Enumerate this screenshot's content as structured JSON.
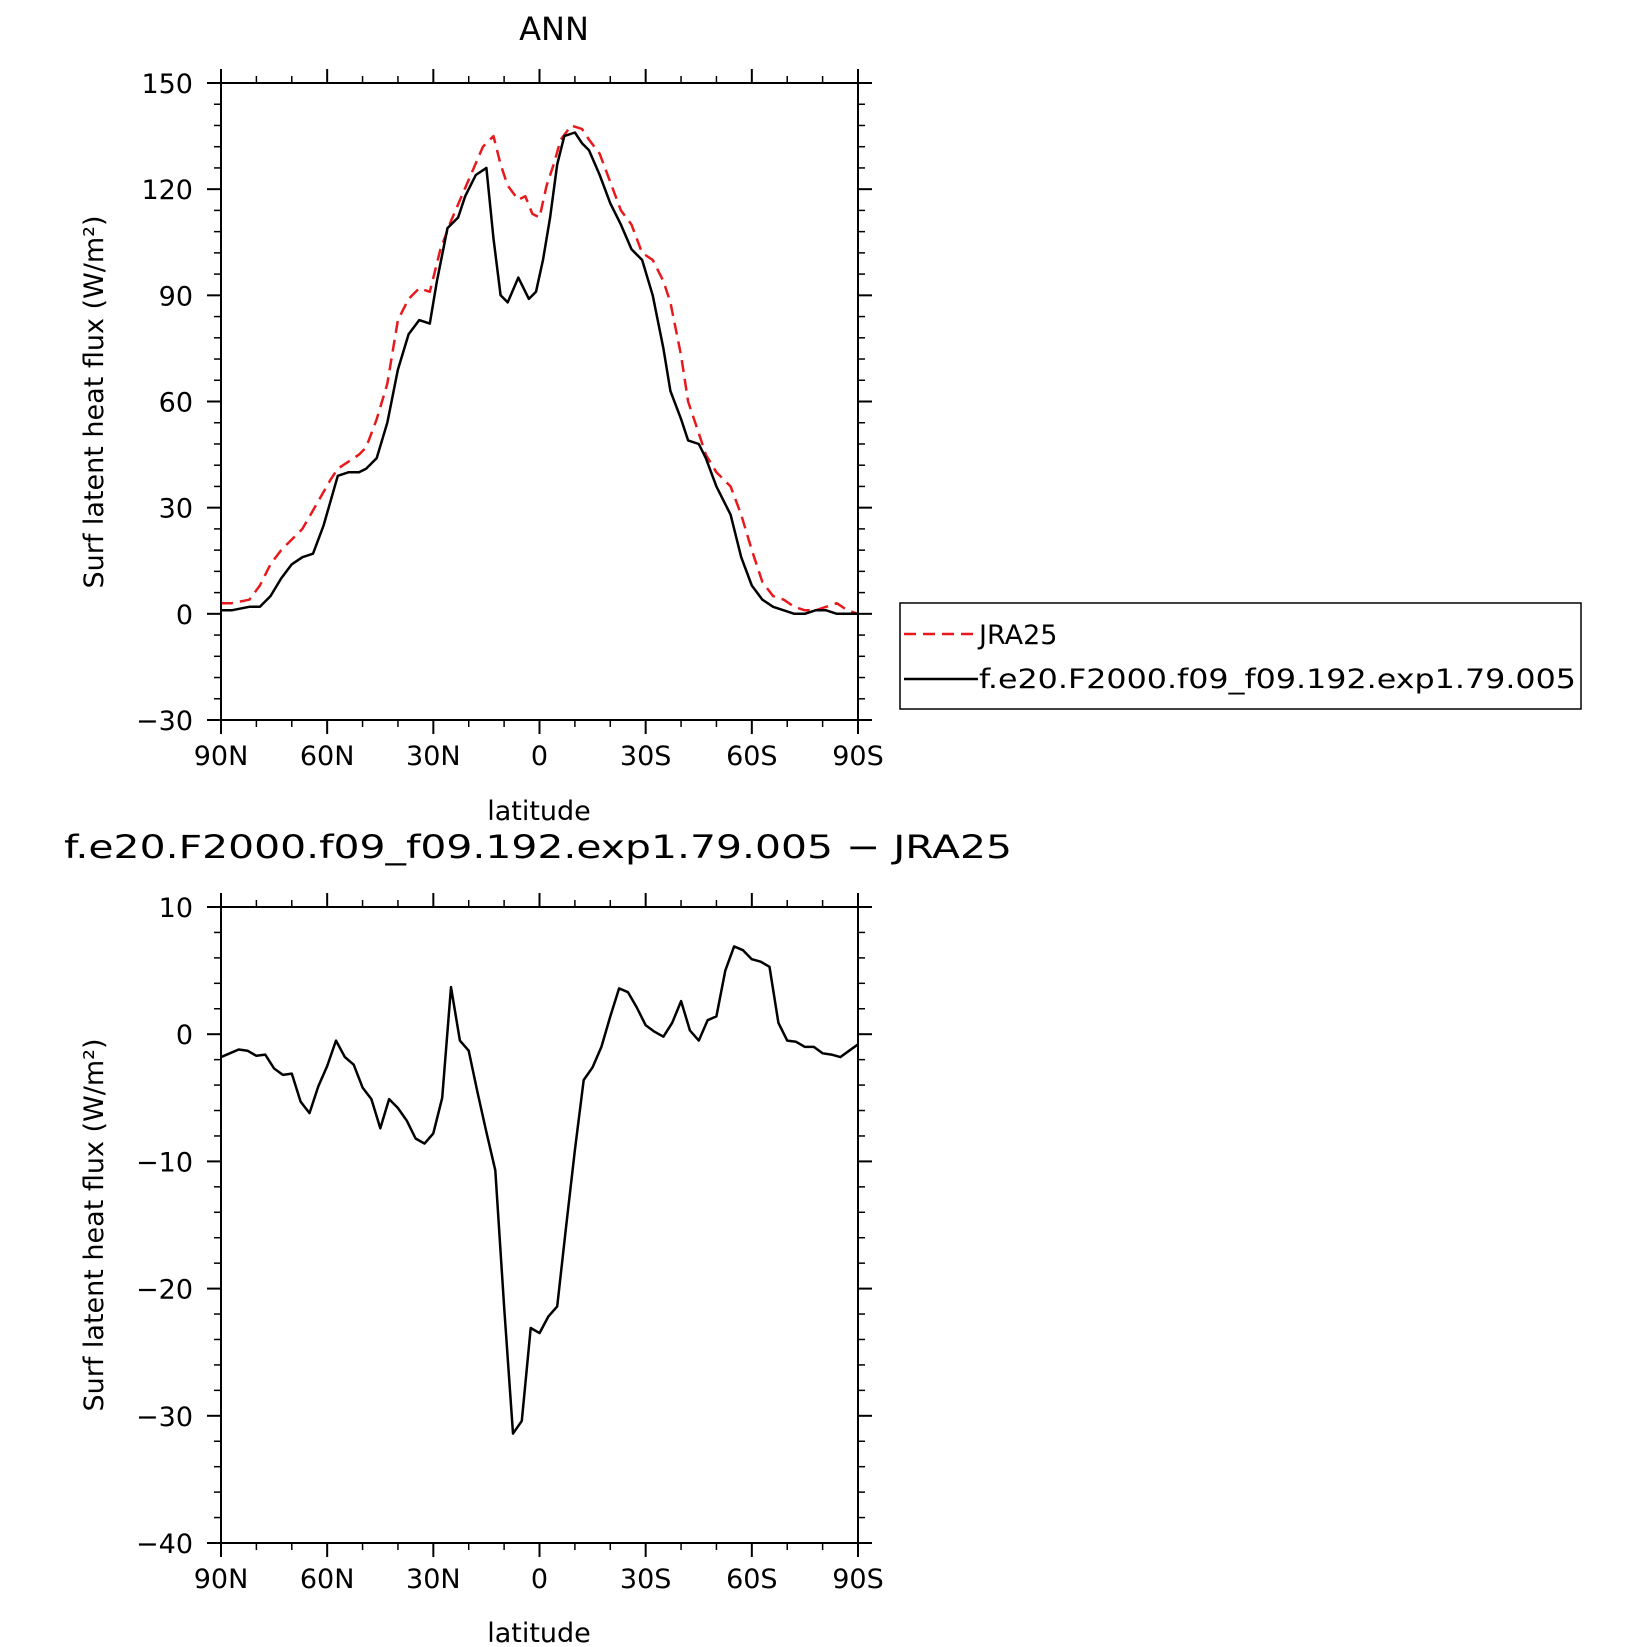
{
  "chart_data": [
    {
      "type": "line",
      "title": "ANN",
      "xlabel": "latitude",
      "ylabel": "Surf latent heat flux (W/m²)",
      "xlim": [
        90,
        -90
      ],
      "ylim": [
        -30,
        150
      ],
      "x_ticks": [
        90,
        60,
        30,
        0,
        -30,
        -60,
        -90
      ],
      "x_tick_labels": [
        "90N",
        "60N",
        "30N",
        "0",
        "30S",
        "60S",
        "90S"
      ],
      "y_ticks": [
        -30,
        0,
        30,
        60,
        90,
        120,
        150
      ],
      "y_tick_labels": [
        "−30",
        "0",
        "30",
        "60",
        "90",
        "120",
        "150"
      ],
      "legend_position": "right, outside plot, vertically centered",
      "series": [
        {
          "name": "JRA25",
          "color": "#e8191c",
          "style": "dashed",
          "x": [
            90,
            87,
            82,
            79,
            76,
            73,
            70,
            67,
            63,
            59,
            57,
            54,
            51,
            49,
            46,
            43,
            40,
            37,
            34,
            31,
            28,
            25,
            22,
            19,
            16,
            13,
            11,
            9,
            6,
            4,
            2,
            0,
            -2,
            -4,
            -6,
            -9,
            -12,
            -14,
            -17,
            -20,
            -23,
            -26,
            -29,
            -32,
            -35,
            -37,
            -40,
            -42,
            -45,
            -47,
            -50,
            -54,
            -57,
            -60,
            -63,
            -66,
            -69,
            -72,
            -75,
            -78,
            -81,
            -84,
            -87,
            -90
          ],
          "y": [
            3,
            3,
            4,
            8,
            14,
            18,
            21,
            24,
            31,
            38,
            41,
            43,
            45,
            47,
            55,
            65,
            83,
            89,
            92,
            91,
            103,
            111,
            118,
            125,
            132,
            135,
            127,
            121,
            117,
            118,
            113,
            112,
            121,
            127,
            134,
            138,
            137,
            134,
            130,
            122,
            114,
            110,
            102,
            100,
            94,
            88,
            73,
            60,
            51,
            45,
            40,
            36,
            28,
            18,
            9,
            5,
            4,
            2,
            1,
            1,
            2,
            3,
            1,
            0
          ]
        },
        {
          "name": "f.e20.F2000.f09_f09.192.exp1.79.005",
          "color": "#000000",
          "style": "solid",
          "x": [
            90,
            87,
            82,
            79,
            76,
            73,
            70,
            67,
            64,
            61,
            57,
            54,
            51,
            49,
            46,
            43,
            40,
            37,
            34,
            31,
            29,
            26,
            23,
            21,
            18,
            15,
            13,
            11,
            9,
            6,
            3,
            1,
            -1,
            -3,
            -5,
            -7,
            -10,
            -12,
            -14,
            -17,
            -20,
            -23,
            -26,
            -29,
            -32,
            -35,
            -37,
            -40,
            -42,
            -45,
            -47,
            -50,
            -54,
            -57,
            -60,
            -63,
            -66,
            -69,
            -72,
            -75,
            -78,
            -81,
            -84,
            -87,
            -90
          ],
          "y": [
            1,
            1,
            2,
            2,
            5,
            10,
            14,
            16,
            17,
            25,
            39,
            40,
            40,
            41,
            44,
            54,
            69,
            79,
            83,
            82,
            94,
            109,
            112,
            118,
            124,
            126,
            106,
            90,
            88,
            95,
            89,
            91,
            100,
            112,
            127,
            135,
            136,
            133,
            131,
            124,
            116,
            110,
            103,
            100,
            90,
            75,
            63,
            55,
            49,
            48,
            44,
            36,
            28,
            16,
            8,
            4,
            2,
            1,
            0,
            0,
            1,
            1,
            0,
            0,
            0
          ]
        }
      ]
    },
    {
      "type": "line",
      "title": "f.e20.F2000.f09_f09.192.exp1.79.005 − JRA25",
      "xlabel": "latitude",
      "ylabel": "Surf latent heat flux (W/m²)",
      "xlim": [
        90,
        -90
      ],
      "ylim": [
        -40,
        10
      ],
      "x_ticks": [
        90,
        60,
        30,
        0,
        -30,
        -60,
        -90
      ],
      "x_tick_labels": [
        "90N",
        "60N",
        "30N",
        "0",
        "30S",
        "60S",
        "90S"
      ],
      "y_ticks": [
        -40,
        -30,
        -20,
        -10,
        0,
        10
      ],
      "y_tick_labels": [
        "−40",
        "−30",
        "−20",
        "−10",
        "0",
        "10"
      ],
      "series": [
        {
          "color": "#000000",
          "style": "solid",
          "x": [
            90,
            87.5,
            85,
            82.5,
            80,
            77.5,
            75,
            72.5,
            70,
            67.5,
            65,
            62.5,
            60,
            57.5,
            55,
            52.5,
            50,
            47.5,
            45,
            42.5,
            40,
            37.5,
            35,
            32.5,
            30,
            27.5,
            25,
            22.5,
            20,
            17.5,
            15,
            12.5,
            10,
            7.5,
            5,
            2.5,
            0,
            -2.5,
            -5,
            -7.5,
            -10,
            -12.5,
            -15,
            -17.5,
            -20,
            -22.5,
            -25,
            -27.5,
            -30,
            -32.5,
            -35,
            -37.5,
            -40,
            -42.5,
            -45,
            -47.5,
            -50,
            -52.5,
            -55,
            -57.5,
            -60,
            -62.5,
            -65,
            -67.5,
            -70,
            -72.5,
            -75,
            -77.5,
            -80,
            -82.5,
            -85,
            -87.5,
            -90
          ],
          "y": [
            -1.8,
            -1.5,
            -1.2,
            -1.3,
            -1.7,
            -1.6,
            -2.7,
            -3.2,
            -3.1,
            -5.3,
            -6.2,
            -4.1,
            -2.5,
            -0.5,
            -1.8,
            -2.4,
            -4.2,
            -5.1,
            -7.4,
            -5.1,
            -5.8,
            -6.8,
            -8.2,
            -8.6,
            -7.8,
            -5.0,
            3.7,
            -0.5,
            -1.3,
            -4.6,
            -7.7,
            -10.7,
            -21.4,
            -31.4,
            -30.4,
            -23.1,
            -23.5,
            -22.2,
            -21.4,
            -15.2,
            -9.1,
            -3.6,
            -2.6,
            -1.0,
            1.4,
            3.6,
            3.3,
            2.1,
            0.7,
            0.2,
            -0.2,
            0.9,
            2.6,
            0.3,
            -0.5,
            1.1,
            1.4,
            5.0,
            6.9,
            6.6,
            5.9,
            5.7,
            5.3,
            0.9,
            -0.5,
            -0.6,
            -1.0,
            -1.0,
            -1.5,
            -1.6,
            -1.8,
            -1.3,
            -0.8
          ]
        }
      ]
    }
  ]
}
